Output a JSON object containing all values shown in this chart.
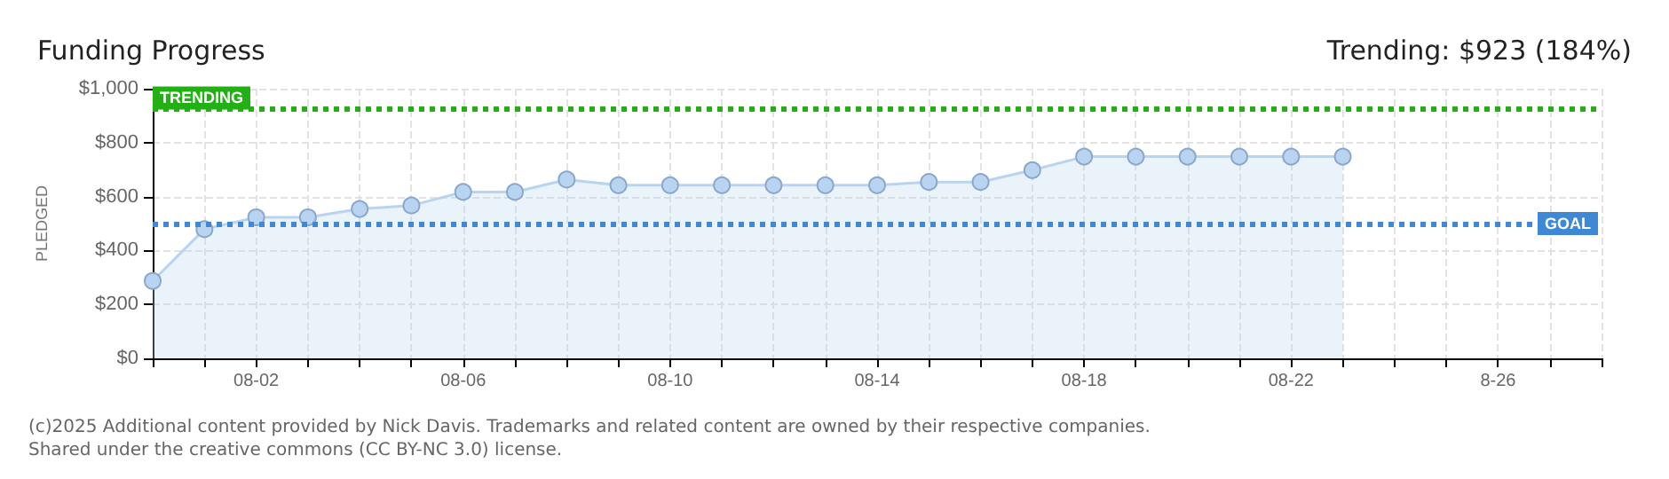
{
  "chart_data": {
    "type": "area",
    "title": "Funding Progress",
    "subtitle": "Trending: $923 (184%)",
    "ylabel": "PLEDGED",
    "categories": [
      null,
      null,
      "08-02",
      null,
      null,
      null,
      "08-06",
      null,
      null,
      null,
      "08-10",
      null,
      null,
      null,
      "08-14",
      null,
      null,
      null,
      "08-18",
      null,
      null,
      null,
      "08-22",
      null,
      null,
      null,
      "8-26",
      null,
      null
    ],
    "series": [
      {
        "color": "#b8d4f0",
        "values": [
          287,
          479,
          523,
          523,
          554,
          567,
          617,
          617,
          663,
          642,
          642,
          642,
          642,
          642,
          642,
          654,
          654,
          698,
          748,
          748,
          748,
          748,
          748,
          748,
          null,
          null,
          null,
          null,
          null
        ]
      }
    ],
    "ylim": [
      0,
      1000
    ],
    "yticks": [
      {
        "value": 0,
        "label": "$0"
      },
      {
        "value": 200,
        "label": "$200"
      },
      {
        "value": 400,
        "label": "$400"
      },
      {
        "value": 600,
        "label": "$600"
      },
      {
        "value": 800,
        "label": "$800"
      },
      {
        "value": 1000,
        "label": "$1,000"
      }
    ],
    "ref_lines": [
      {
        "axis": "y",
        "value": 500,
        "label": "GOAL",
        "color": "#3f88d6"
      },
      {
        "axis": "y",
        "value": 923,
        "label": "TRENDING",
        "color": "#22b014"
      }
    ],
    "grid": true,
    "marker": "circle",
    "line_style": "solid",
    "annotations": [
      "(c)2025 Additional content provided by Nick Davis. Trademarks and related content are owned by their respective companies.",
      "Shared under the creative commons (CC BY-NC 3.0) license."
    ]
  }
}
